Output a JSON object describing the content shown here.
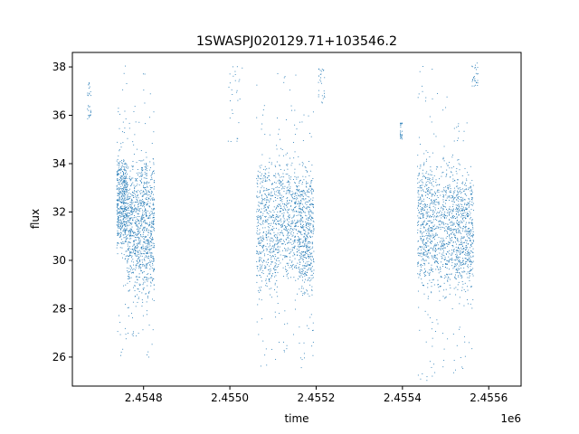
{
  "chart_data": {
    "type": "scatter",
    "title": "1SWASPJ020129.71+103546.2",
    "xlabel": "time",
    "ylabel": "flux",
    "x_offset_label": "1e6",
    "xlim": [
      2454635,
      2455675
    ],
    "ylim": [
      24.8,
      38.6
    ],
    "x_ticks": [
      2454800,
      2455000,
      2455200,
      2455400,
      2455600
    ],
    "x_tick_labels": [
      "2.4548",
      "2.4550",
      "2.4552",
      "2.4554",
      "2.4556"
    ],
    "y_ticks": [
      26,
      28,
      30,
      32,
      34,
      36,
      38
    ],
    "y_tick_labels": [
      "26",
      "28",
      "30",
      "32",
      "34",
      "36",
      "38"
    ],
    "grid": false,
    "legend": false,
    "series_color": "#1f77b4",
    "clusters": [
      {
        "x_range": [
          2454738,
          2454762
        ],
        "center": 32.4,
        "spread": 1.1,
        "outlier_range": [
          26.0,
          38.1
        ]
      },
      {
        "x_range": [
          2454762,
          2454795
        ],
        "center": 31.4,
        "spread": 1.5,
        "outlier_range": [
          26.4,
          36.5
        ]
      },
      {
        "x_range": [
          2454795,
          2454825
        ],
        "center": 31.5,
        "spread": 1.6,
        "outlier_range": [
          25.5,
          38.1
        ]
      },
      {
        "x_range": [
          2455062,
          2455110
        ],
        "center": 31.5,
        "spread": 1.6,
        "outlier_range": [
          25.2,
          38.1
        ]
      },
      {
        "x_range": [
          2455110,
          2455160
        ],
        "center": 31.8,
        "spread": 1.4,
        "outlier_range": [
          26.0,
          37.8
        ]
      },
      {
        "x_range": [
          2455160,
          2455195
        ],
        "center": 31.3,
        "spread": 1.4,
        "outlier_range": [
          25.0,
          36.2
        ]
      },
      {
        "x_range": [
          2455435,
          2455475
        ],
        "center": 31.6,
        "spread": 1.5,
        "outlier_range": [
          25.0,
          38.1
        ]
      },
      {
        "x_range": [
          2455475,
          2455525
        ],
        "center": 31.4,
        "spread": 1.5,
        "outlier_range": [
          25.3,
          37.3
        ]
      },
      {
        "x_range": [
          2455525,
          2455565
        ],
        "center": 31.3,
        "spread": 1.3,
        "outlier_range": [
          25.2,
          36.0
        ]
      }
    ],
    "sparse_groups": [
      {
        "x_range": [
          2454670,
          2454678
        ],
        "y_range": [
          35.8,
          37.4
        ]
      },
      {
        "x_range": [
          2454995,
          2455030
        ],
        "y_range": [
          34.6,
          38.2
        ]
      },
      {
        "x_range": [
          2455205,
          2455220
        ],
        "y_range": [
          36.5,
          38.0
        ]
      },
      {
        "x_range": [
          2455395,
          2455400
        ],
        "y_range": [
          35.0,
          35.7
        ]
      },
      {
        "x_range": [
          2455560,
          2455575
        ],
        "y_range": [
          37.2,
          38.2
        ]
      }
    ]
  }
}
